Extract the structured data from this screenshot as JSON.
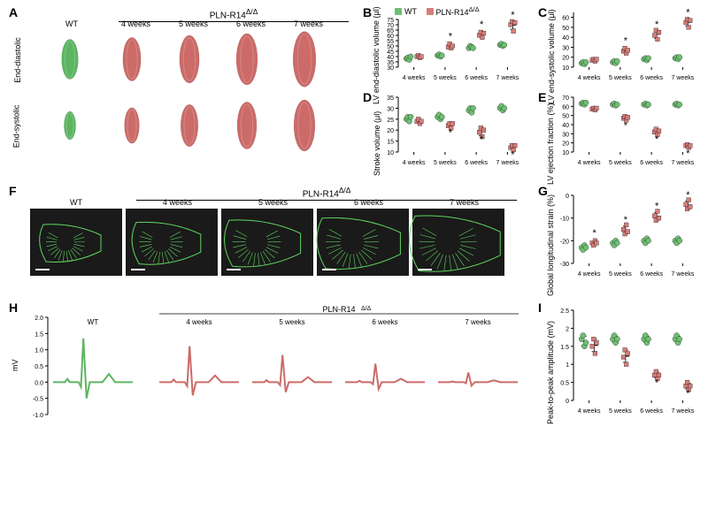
{
  "colors": {
    "wt": "#6fbf73",
    "mut": "#d67d7a",
    "wt_line": "#5db562",
    "mut_line": "#cc6b68",
    "axis": "#000000",
    "bg": "#ffffff",
    "tick": "#000000"
  },
  "groups": [
    "WT",
    "PLN-R14<sup>Δ/Δ</sup>"
  ],
  "timepoints": [
    "4 weeks",
    "5 weeks",
    "6 weeks",
    "7 weeks"
  ],
  "panelA": {
    "label": "A",
    "header_mut": "PLN-R14",
    "row_labels": [
      "End-diastolic",
      "End-systolic"
    ],
    "wt_label": "WT"
  },
  "panelB": {
    "label": "B",
    "type": "scatter",
    "ylabel": "LV end-diastolic volume (μl)",
    "ylim": [
      30,
      75
    ],
    "ytick_step": 5,
    "legend": true,
    "wt": [
      [
        38,
        39,
        37,
        40
      ],
      [
        41,
        42,
        40,
        41
      ],
      [
        48,
        50,
        49,
        48
      ],
      [
        51,
        52,
        50,
        51
      ]
    ],
    "mut": [
      [
        40,
        41,
        39,
        40
      ],
      [
        49,
        52,
        48,
        50
      ],
      [
        60,
        63,
        58,
        62
      ],
      [
        70,
        73,
        64,
        72
      ]
    ],
    "sig": [
      false,
      true,
      true,
      true
    ]
  },
  "panelC": {
    "label": "C",
    "ylabel": "LV end-systolic volume (μl)",
    "ylim": [
      10,
      65
    ],
    "ytick_step": 10,
    "wt": [
      [
        14,
        15,
        13,
        15
      ],
      [
        15,
        16,
        14,
        16
      ],
      [
        18,
        19,
        17,
        19
      ],
      [
        19,
        20,
        18,
        20
      ]
    ],
    "mut": [
      [
        17,
        18,
        16,
        18
      ],
      [
        26,
        29,
        24,
        27
      ],
      [
        42,
        47,
        38,
        45
      ],
      [
        55,
        58,
        50,
        57
      ]
    ],
    "sig": [
      false,
      true,
      true,
      true
    ]
  },
  "panelD": {
    "label": "D",
    "ylabel": "Stroke volume (μl)",
    "ylim": [
      10,
      35
    ],
    "ytick_step": 5,
    "wt": [
      [
        25,
        26,
        24,
        26
      ],
      [
        26,
        27,
        25,
        26
      ],
      [
        29,
        30,
        28,
        30
      ],
      [
        30,
        31,
        29,
        30
      ]
    ],
    "mut": [
      [
        24,
        25,
        23,
        24
      ],
      [
        22,
        23,
        21,
        23
      ],
      [
        19,
        21,
        17,
        20
      ],
      [
        12,
        13,
        11,
        13
      ]
    ],
    "sig": [
      false,
      true,
      true,
      true
    ]
  },
  "panelE": {
    "label": "E",
    "ylabel": "LV ejection fraction (%)",
    "ylim": [
      10,
      70
    ],
    "ytick_step": 10,
    "wt": [
      [
        63,
        64,
        62,
        64
      ],
      [
        62,
        63,
        61,
        62
      ],
      [
        62,
        63,
        61,
        62
      ],
      [
        62,
        63,
        61,
        62
      ]
    ],
    "mut": [
      [
        57,
        58,
        56,
        58
      ],
      [
        47,
        49,
        45,
        48
      ],
      [
        32,
        35,
        29,
        33
      ],
      [
        17,
        18,
        15,
        17
      ]
    ],
    "sig": [
      false,
      true,
      true,
      true
    ]
  },
  "panelF": {
    "label": "F",
    "header_mut": "PLN-R14",
    "wt_label": "WT"
  },
  "panelG": {
    "label": "G",
    "ylabel": "Global longitudinal strain (%)",
    "ylim": [
      -30,
      0
    ],
    "ytick_step": -10,
    "wt": [
      [
        -23,
        -24,
        -22,
        -23
      ],
      [
        -21,
        -22,
        -20,
        -21
      ],
      [
        -20,
        -21,
        -19,
        -20
      ],
      [
        -20,
        -21,
        -19,
        -20
      ]
    ],
    "mut": [
      [
        -21,
        -22,
        -20,
        -21
      ],
      [
        -15,
        -17,
        -13,
        -16
      ],
      [
        -9,
        -11,
        -7,
        -10
      ],
      [
        -4,
        -6,
        -2,
        -5
      ]
    ],
    "sig": [
      true,
      true,
      true,
      true
    ]
  },
  "panelH": {
    "label": "H",
    "ylabel": "mV",
    "ylim": [
      -1.0,
      2.0
    ],
    "ytick_step": 0.5,
    "wt_label": "WT"
  },
  "panelI": {
    "label": "I",
    "ylabel": "Peak-to-peak amplitude (mV)",
    "ylim": [
      0,
      2.5
    ],
    "ytick_step": 0.5,
    "wt": [
      [
        1.7,
        1.8,
        1.5,
        1.6
      ],
      [
        1.7,
        1.8,
        1.6,
        1.7
      ],
      [
        1.7,
        1.8,
        1.6,
        1.7
      ],
      [
        1.7,
        1.8,
        1.6,
        1.7
      ]
    ],
    "mut": [
      [
        1.5,
        1.7,
        1.3,
        1.6
      ],
      [
        1.2,
        1.4,
        1.0,
        1.3
      ],
      [
        0.7,
        0.8,
        0.6,
        0.7
      ],
      [
        0.4,
        0.5,
        0.3,
        0.4
      ]
    ],
    "sig": [
      false,
      false,
      true,
      true
    ]
  },
  "fontsize": {
    "label": 14,
    "axis": 9,
    "tick": 8
  },
  "marker_size": 4,
  "cap_size": 4
}
